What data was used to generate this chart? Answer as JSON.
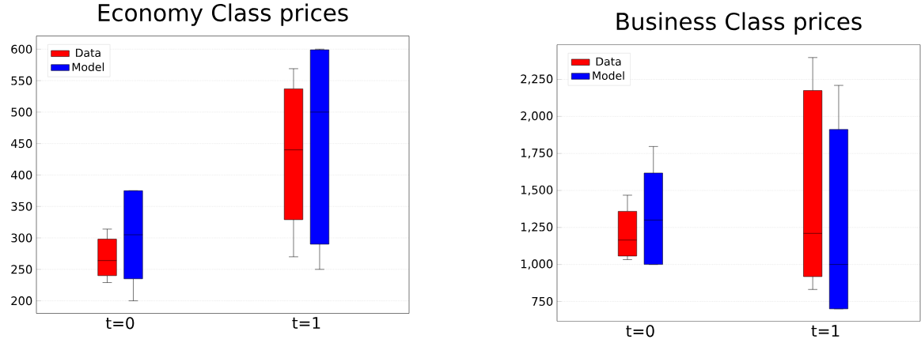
{
  "chart_data": [
    {
      "type": "box",
      "title": "Economy Class prices",
      "categories": [
        "t=0",
        "t=1"
      ],
      "series": [
        {
          "name": "Data",
          "color": "#ff0000",
          "boxes": [
            {
              "low": 229,
              "q1": 240,
              "median": 264,
              "q3": 298,
              "high": 314
            },
            {
              "low": 270,
              "q1": 329,
              "median": 440,
              "q3": 537,
              "high": 569
            }
          ]
        },
        {
          "name": "Model",
          "color": "#0000ff",
          "boxes": [
            {
              "low": 200,
              "q1": 235,
              "median": 305,
              "q3": 375,
              "high": 375
            },
            {
              "low": 250,
              "q1": 290,
              "median": 500,
              "q3": 599,
              "high": 600
            }
          ]
        }
      ],
      "ylim": [
        180,
        621
      ],
      "yticks": [
        200,
        250,
        300,
        350,
        400,
        450,
        500,
        550,
        600
      ],
      "grid": "y",
      "legend": "top left"
    },
    {
      "type": "box",
      "title": "Business Class prices",
      "categories": [
        "t=0",
        "t=1"
      ],
      "series": [
        {
          "name": "Data",
          "color": "#ff0000",
          "boxes": [
            {
              "low": 1033,
              "q1": 1057,
              "median": 1165,
              "q3": 1359,
              "high": 1468
            },
            {
              "low": 831,
              "q1": 918,
              "median": 1210,
              "q3": 2175,
              "high": 2398
            }
          ]
        },
        {
          "name": "Model",
          "color": "#0000ff",
          "boxes": [
            {
              "low": 1000,
              "q1": 1000,
              "median": 1300,
              "q3": 1618,
              "high": 1797
            },
            {
              "low": 700,
              "q1": 700,
              "median": 1000,
              "q3": 1912,
              "high": 2210
            }
          ]
        }
      ],
      "ylim": [
        616,
        2485
      ],
      "yticks": [
        750,
        {
          "value": 1000,
          "label": "1,000"
        },
        {
          "value": 1250,
          "label": "1,250"
        },
        {
          "value": 1500,
          "label": "1,500"
        },
        {
          "value": 1750,
          "label": "1,750"
        },
        {
          "value": 2000,
          "label": "2,000"
        },
        {
          "value": 2250,
          "label": "2,250"
        }
      ],
      "grid": "y",
      "legend": "top left"
    }
  ]
}
